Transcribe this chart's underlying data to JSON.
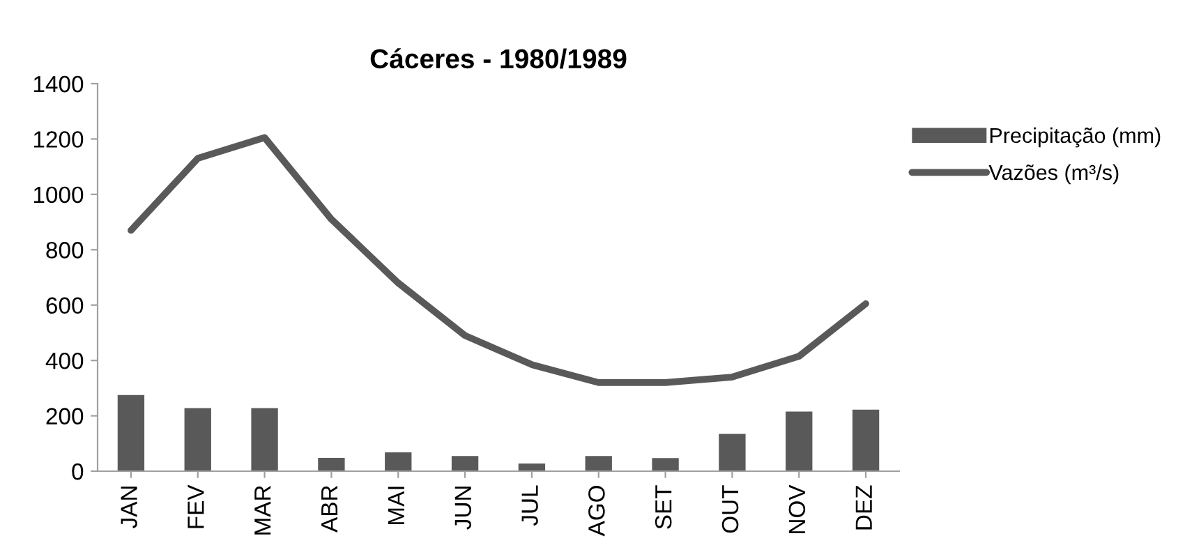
{
  "chart_data": {
    "type": "bar",
    "title": "Cáceres - 1980/1989",
    "categories": [
      "JAN",
      "FEV",
      "MAR",
      "ABR",
      "MAI",
      "JUN",
      "JUL",
      "AGO",
      "SET",
      "OUT",
      "NOV",
      "DEZ"
    ],
    "series": [
      {
        "name": "Precipitação (mm)",
        "color": "#595959",
        "values": [
          275,
          228,
          228,
          48,
          68,
          55,
          28,
          55,
          47,
          135,
          215,
          222
        ]
      },
      {
        "name": "Vazões (m³/s)",
        "type": "line",
        "color": "#595959",
        "values": [
          870,
          1130,
          1205,
          910,
          680,
          490,
          385,
          320,
          320,
          340,
          415,
          605
        ]
      }
    ],
    "ylim": [
      0,
      1400
    ],
    "yticks": [
      0,
      200,
      400,
      600,
      800,
      1000,
      1200,
      1400
    ],
    "grid": false,
    "legend": "right",
    "marker": "none",
    "line_style": "solid"
  }
}
